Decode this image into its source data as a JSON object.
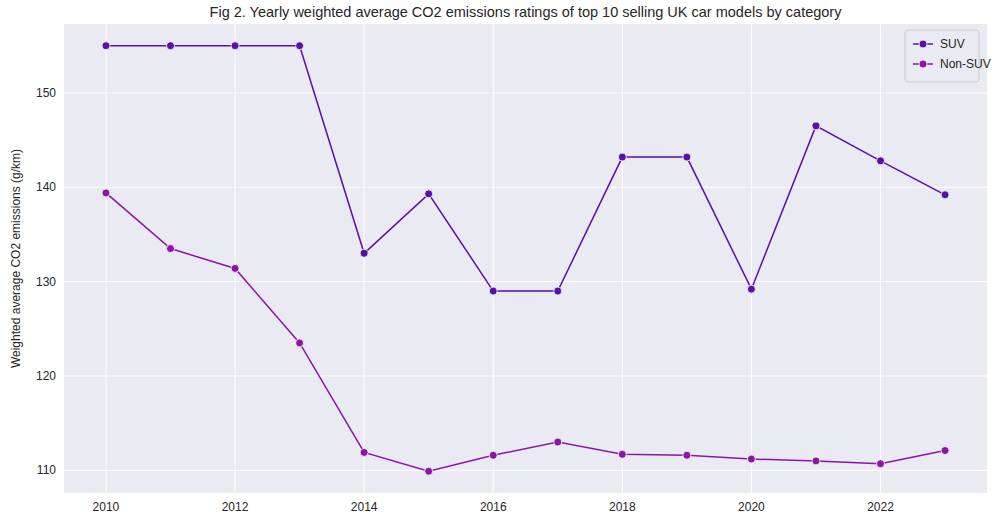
{
  "chart_data": {
    "type": "line",
    "title": "Fig 2. Yearly weighted average CO2 emissions ratings of top 10 selling UK car models by category",
    "y_label": "Weighted average CO2 emissions (g/km)",
    "x": [
      2010,
      2011,
      2012,
      2013,
      2014,
      2015,
      2016,
      2017,
      2018,
      2019,
      2020,
      2021,
      2022,
      2023
    ],
    "series": [
      {
        "name": "SUV",
        "color": "#5a0fa8",
        "marker": "circle",
        "values": [
          155,
          155,
          155,
          155,
          133,
          139.3,
          129,
          129,
          143.2,
          143.2,
          129.2,
          146.5,
          142.8,
          139.2
        ]
      },
      {
        "name": "Non-SUV",
        "color": "#8c15a8",
        "marker": "circle",
        "values": [
          139.4,
          133.5,
          131.4,
          123.5,
          111.9,
          109.9,
          111.6,
          113.0,
          111.7,
          111.6,
          111.2,
          111.0,
          110.7,
          112.1
        ]
      }
    ],
    "xlim": [
      2009.35,
      2023.65
    ],
    "xticks": [
      2010,
      2012,
      2014,
      2016,
      2018,
      2020,
      2022
    ],
    "ylim": [
      107.6,
      157.3
    ],
    "yticks": [
      110,
      120,
      130,
      140,
      150
    ],
    "grid": true,
    "legend": "upper right"
  }
}
